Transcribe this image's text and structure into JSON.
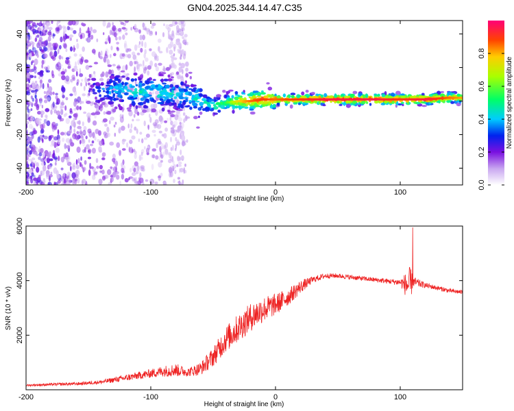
{
  "title": "GN04.2025.344.14.47.C35",
  "chart_data": [
    {
      "type": "heatmap",
      "xlabel": "Height of straight line (km)",
      "ylabel": "Frequency (Hz)",
      "xlim": [
        -200,
        150
      ],
      "ylim": [
        -50,
        48
      ],
      "xticks": [
        -200,
        -100,
        0,
        100
      ],
      "yticks": [
        -40,
        -20,
        0,
        20,
        40
      ],
      "colorbar": {
        "label": "Normalized spectral amplitude",
        "range": [
          0,
          1
        ],
        "ticks": [
          0.0,
          0.2,
          0.4,
          0.6,
          0.8
        ],
        "tick_labels": [
          "0.0",
          "0.2",
          "0.4",
          "0.6",
          "0.8"
        ]
      },
      "ridge": {
        "x": [
          -150,
          -130,
          -110,
          -90,
          -70,
          -60,
          -50,
          -40,
          -30,
          -20,
          -10,
          0,
          20,
          40,
          60,
          80,
          100,
          120,
          140,
          150
        ],
        "freq": [
          6,
          7,
          6,
          5,
          3,
          0,
          -3,
          -1,
          0,
          0,
          1,
          1,
          1,
          1,
          1,
          1,
          1,
          1,
          2,
          2
        ],
        "amplitude": [
          0.25,
          0.4,
          0.45,
          0.45,
          0.4,
          0.5,
          0.5,
          0.55,
          0.75,
          0.85,
          0.9,
          0.85,
          0.9,
          0.95,
          0.95,
          0.95,
          0.9,
          0.95,
          0.85,
          0.8
        ]
      }
    },
    {
      "type": "line",
      "xlabel": "Height of straight line (km)",
      "ylabel": "SNR (10 * v/v)",
      "xlim": [
        -200,
        150
      ],
      "ylim": [
        0,
        6000
      ],
      "xticks": [
        -200,
        -100,
        0,
        100
      ],
      "yticks": [
        2000,
        4000,
        6000
      ],
      "series": [
        {
          "name": "SNR",
          "color": "#ee2222",
          "x": [
            -200,
            -180,
            -160,
            -140,
            -120,
            -100,
            -90,
            -80,
            -70,
            -60,
            -50,
            -40,
            -30,
            -20,
            -10,
            0,
            10,
            20,
            30,
            40,
            50,
            60,
            70,
            80,
            90,
            100,
            105,
            108,
            110,
            120,
            130,
            140,
            150
          ],
          "y": [
            150,
            180,
            200,
            260,
            400,
            550,
            620,
            650,
            600,
            700,
            1100,
            1700,
            2100,
            2500,
            2800,
            3000,
            3300,
            3700,
            4000,
            4150,
            4150,
            4100,
            4050,
            4000,
            3950,
            3900,
            3700,
            3600,
            3900,
            3800,
            3700,
            3600,
            3550
          ],
          "noise": [
            50,
            60,
            70,
            90,
            150,
            200,
            250,
            300,
            200,
            300,
            450,
            600,
            650,
            650,
            600,
            500,
            400,
            300,
            150,
            120,
            110,
            110,
            110,
            110,
            120,
            150,
            600,
            900,
            250,
            120,
            110,
            100,
            100
          ]
        }
      ],
      "spike": {
        "x": 110,
        "y": 5950
      }
    }
  ]
}
